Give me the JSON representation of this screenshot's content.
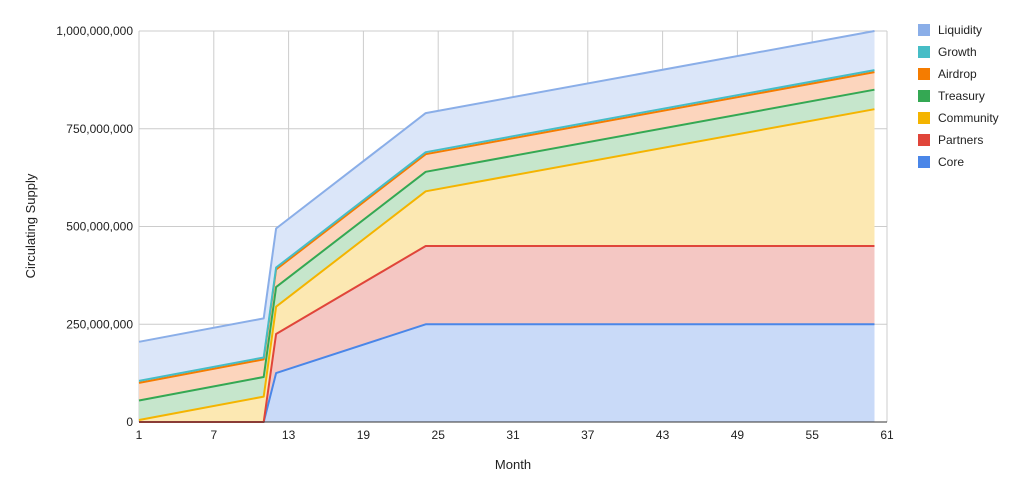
{
  "chart_data": {
    "type": "area",
    "stacked": true,
    "title": "",
    "xlabel": "Month",
    "ylabel": "Circulating Supply",
    "xlim": [
      1,
      61
    ],
    "ylim": [
      0,
      1000000000
    ],
    "x_ticks": [
      "1",
      "7",
      "13",
      "19",
      "25",
      "31",
      "37",
      "43",
      "49",
      "55",
      "61"
    ],
    "y_ticks": [
      "0",
      "250,000,000",
      "500,000,000",
      "750,000,000",
      "1,000,000,000"
    ],
    "grid": true,
    "legend_position": "right",
    "x": [
      1,
      11,
      12,
      24,
      60
    ],
    "series": [
      {
        "name": "Core",
        "color": "#4a86e8",
        "fill": "#c9daf8",
        "values": [
          0,
          0,
          125000000,
          250000000,
          250000000
        ]
      },
      {
        "name": "Partners",
        "color": "#e0453a",
        "fill": "#f4c7c3",
        "values": [
          0,
          0,
          100000000,
          200000000,
          200000000
        ]
      },
      {
        "name": "Community",
        "color": "#f4b400",
        "fill": "#fce8b2",
        "values": [
          5000000,
          65000000,
          70000000,
          140000000,
          350000000
        ]
      },
      {
        "name": "Treasury",
        "color": "#34a853",
        "fill": "#c6e6cc",
        "values": [
          50000000,
          50000000,
          50000000,
          50000000,
          50000000
        ]
      },
      {
        "name": "Airdrop",
        "color": "#f57c00",
        "fill": "#fcd5bd",
        "values": [
          45000000,
          45000000,
          45000000,
          45000000,
          45000000
        ]
      },
      {
        "name": "Growth",
        "color": "#46bdc6",
        "fill": "#c3ecee",
        "values": [
          5000000,
          5000000,
          5000000,
          5000000,
          5000000
        ]
      },
      {
        "name": "Liquidity",
        "color": "#8aaee8",
        "fill": "#dbe6f9",
        "values": [
          100000000,
          100000000,
          100000000,
          100000000,
          100000000
        ]
      }
    ],
    "legend_order": [
      "Liquidity",
      "Growth",
      "Airdrop",
      "Treasury",
      "Community",
      "Partners",
      "Core"
    ]
  }
}
